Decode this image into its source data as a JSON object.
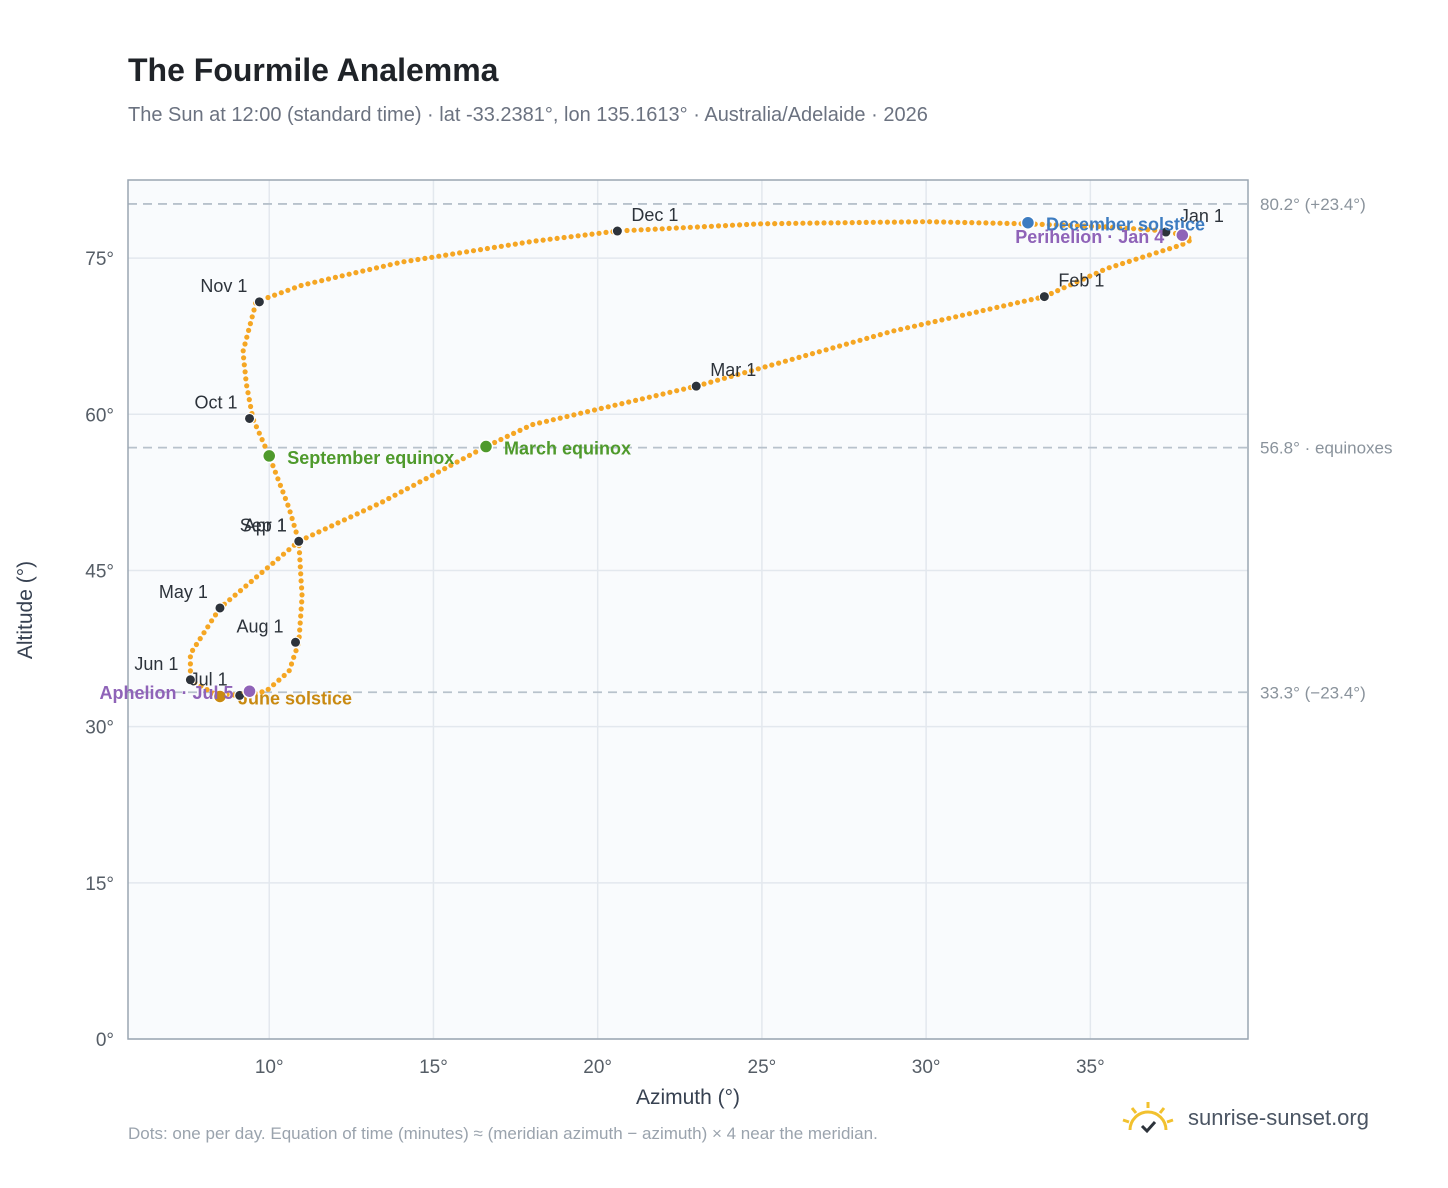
{
  "header": {
    "title": "The Fourmile Analemma",
    "subtitle": "The Sun at 12:00 (standard time) · lat -33.2381°, lon 135.1613° · Australia/Adelaide · 2026"
  },
  "footer": {
    "note": "Dots: one per day. Equation of time (minutes) ≈ (meridian azimuth − azimuth) × 4 near the meridian.",
    "brand": "sunrise-sunset.org",
    "brand_icon": "sun-check-icon"
  },
  "colors": {
    "curve": "#f5a623",
    "month_dot": "#2d333b",
    "equinox": "#4f9a2c",
    "june_solstice": "#c98a12",
    "december_solstice": "#3d7cc1",
    "apsis": "#8f63b8",
    "guide": "#b8c2cc",
    "plot_bg": "#f9fbfd"
  },
  "chart_data": {
    "type": "scatter",
    "xlabel": "Azimuth (°)",
    "ylabel": "Altitude (°)",
    "xlim": [
      5.7,
      39.8
    ],
    "ylim": [
      0,
      82.5
    ],
    "xticks": [
      10,
      15,
      20,
      25,
      30,
      35
    ],
    "yticks": [
      0,
      15,
      30,
      45,
      60,
      75
    ],
    "x_tick_labels": [
      "10°",
      "15°",
      "20°",
      "25°",
      "30°",
      "35°"
    ],
    "y_tick_labels": [
      "0°",
      "15°",
      "30°",
      "45°",
      "60°",
      "75°"
    ],
    "grid": true,
    "reference_lines": [
      {
        "altitude": 80.2,
        "label": "80.2° (+23.4°)"
      },
      {
        "altitude": 56.8,
        "label": "56.8° · equinoxes"
      },
      {
        "altitude": 33.3,
        "label": "33.3° (−23.4°)"
      }
    ],
    "series_note": "one dot per day",
    "path_keypoints": [
      [
        37.8,
        77.2
      ],
      [
        38.1,
        76.8
      ],
      [
        37.8,
        76.3
      ],
      [
        37.0,
        75.5
      ],
      [
        35.5,
        74.0
      ],
      [
        33.6,
        71.3
      ],
      [
        29.0,
        68.0
      ],
      [
        23.0,
        62.7
      ],
      [
        18.0,
        59.0
      ],
      [
        16.6,
        56.9
      ],
      [
        13.4,
        51.5
      ],
      [
        10.9,
        47.8
      ],
      [
        8.5,
        41.4
      ],
      [
        7.6,
        37.0
      ],
      [
        7.6,
        34.5
      ],
      [
        8.3,
        33.2
      ],
      [
        9.1,
        33.0
      ],
      [
        9.9,
        33.4
      ],
      [
        10.6,
        35.3
      ],
      [
        10.9,
        38.1
      ],
      [
        11.0,
        42.5
      ],
      [
        10.9,
        47.8
      ],
      [
        10.6,
        51.0
      ],
      [
        10.0,
        56.0
      ],
      [
        9.5,
        59.6
      ],
      [
        9.3,
        63.0
      ],
      [
        9.2,
        66.0
      ],
      [
        9.6,
        70.8
      ],
      [
        11.0,
        72.4
      ],
      [
        14.0,
        74.6
      ],
      [
        18.0,
        76.6
      ],
      [
        20.6,
        77.6
      ],
      [
        25.0,
        78.3
      ],
      [
        30.0,
        78.5
      ],
      [
        33.0,
        78.3
      ],
      [
        35.5,
        78.0
      ],
      [
        37.3,
        77.6
      ],
      [
        37.8,
        77.2
      ]
    ],
    "month_markers": [
      {
        "label": "Jan 1",
        "x": 37.3,
        "y": 77.5
      },
      {
        "label": "Feb 1",
        "x": 33.6,
        "y": 71.3
      },
      {
        "label": "Mar 1",
        "x": 23.0,
        "y": 62.7
      },
      {
        "label": "Apr 1",
        "x": 10.9,
        "y": 47.8
      },
      {
        "label": "May 1",
        "x": 8.5,
        "y": 41.4
      },
      {
        "label": "Jun 1",
        "x": 7.6,
        "y": 34.5
      },
      {
        "label": "Jul 1",
        "x": 9.1,
        "y": 33.0
      },
      {
        "label": "Aug 1",
        "x": 10.8,
        "y": 38.1
      },
      {
        "label": "Sep 1",
        "x": 10.9,
        "y": 47.8
      },
      {
        "label": "Oct 1",
        "x": 9.4,
        "y": 59.6
      },
      {
        "label": "Nov 1",
        "x": 9.7,
        "y": 70.8
      },
      {
        "label": "Dec 1",
        "x": 20.6,
        "y": 77.6
      }
    ],
    "events": [
      {
        "label": "March equinox",
        "x": 16.6,
        "y": 56.9,
        "color": "#4f9a2c"
      },
      {
        "label": "September equinox",
        "x": 10.0,
        "y": 56.0,
        "color": "#4f9a2c"
      },
      {
        "label": "June solstice",
        "x": 8.5,
        "y": 32.9,
        "color": "#c98a12"
      },
      {
        "label": "December solstice",
        "x": 33.1,
        "y": 78.4,
        "color": "#3d7cc1"
      },
      {
        "label": "Aphelion · Jul 5",
        "x": 9.4,
        "y": 33.4,
        "color": "#8f63b8"
      },
      {
        "label": "Perihelion · Jan 4",
        "x": 37.8,
        "y": 77.2,
        "color": "#8f63b8"
      }
    ]
  }
}
